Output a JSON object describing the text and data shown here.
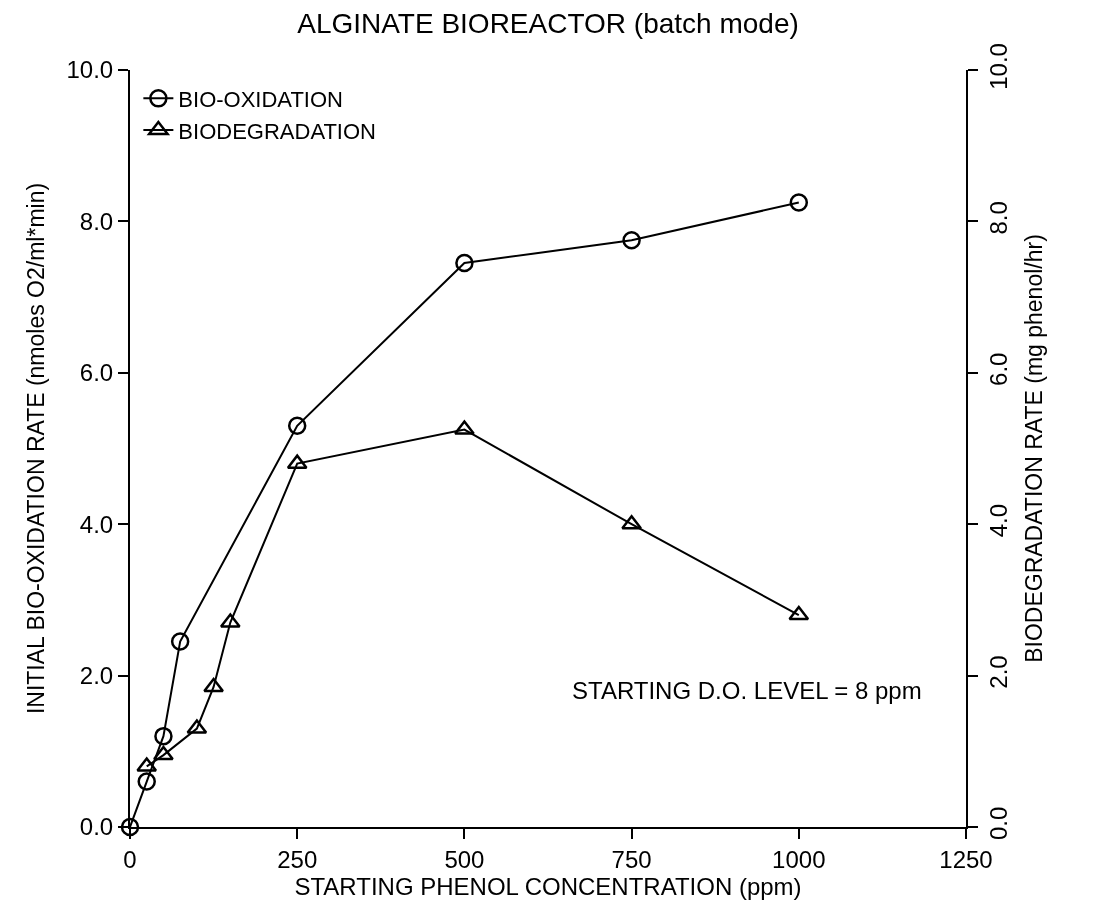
{
  "chart_data": {
    "type": "line",
    "title": "ALGINATE BIOREACTOR (batch mode)",
    "xlabel": "STARTING PHENOL CONCENTRATION (ppm)",
    "ylabel": "INITIAL BIO-OXIDATION RATE (nmoles O2/ml*min)",
    "y2label": "BIODEGRADATION RATE (mg phenol/hr)",
    "series": [
      {
        "name": "BIO-OXIDATION",
        "color": "#000000",
        "marker": "circle",
        "x": [
          0,
          25,
          50,
          75,
          250,
          500,
          750,
          1000
        ],
        "values": [
          0.0,
          0.6,
          1.2,
          2.45,
          5.3,
          7.45,
          7.75,
          8.25
        ]
      },
      {
        "name": "BIODEGRADATION",
        "color": "#000000",
        "marker": "triangle",
        "axis": "y2",
        "x": [
          25,
          50,
          100,
          125,
          150,
          250,
          500,
          750,
          1000
        ],
        "values": [
          0.8,
          0.95,
          1.3,
          1.85,
          2.7,
          4.8,
          5.25,
          4.0,
          2.8
        ]
      }
    ],
    "xlim": [
      0,
      1250
    ],
    "xticks": [
      0,
      250,
      500,
      750,
      1000,
      1250
    ],
    "ylim": [
      0,
      10
    ],
    "yticks": [
      {
        "value": 0,
        "label": "0.0"
      },
      {
        "value": 2,
        "label": "2.0"
      },
      {
        "value": 4,
        "label": "4.0"
      },
      {
        "value": 6,
        "label": "6.0"
      },
      {
        "value": 8,
        "label": "8.0"
      },
      {
        "value": 10,
        "label": "10.0"
      }
    ],
    "y2lim": [
      0,
      10
    ],
    "y2ticks": [
      {
        "value": 0,
        "label": "0.0"
      },
      {
        "value": 2,
        "label": "2.0"
      },
      {
        "value": 4,
        "label": "4.0"
      },
      {
        "value": 6,
        "label": "6.0"
      },
      {
        "value": 8,
        "label": "8.0"
      },
      {
        "value": 10,
        "label": "10.0"
      }
    ],
    "annotations": [
      "STARTING D.O. LEVEL = 8 ppm"
    ],
    "legend": "top left",
    "line_style": "solid"
  }
}
